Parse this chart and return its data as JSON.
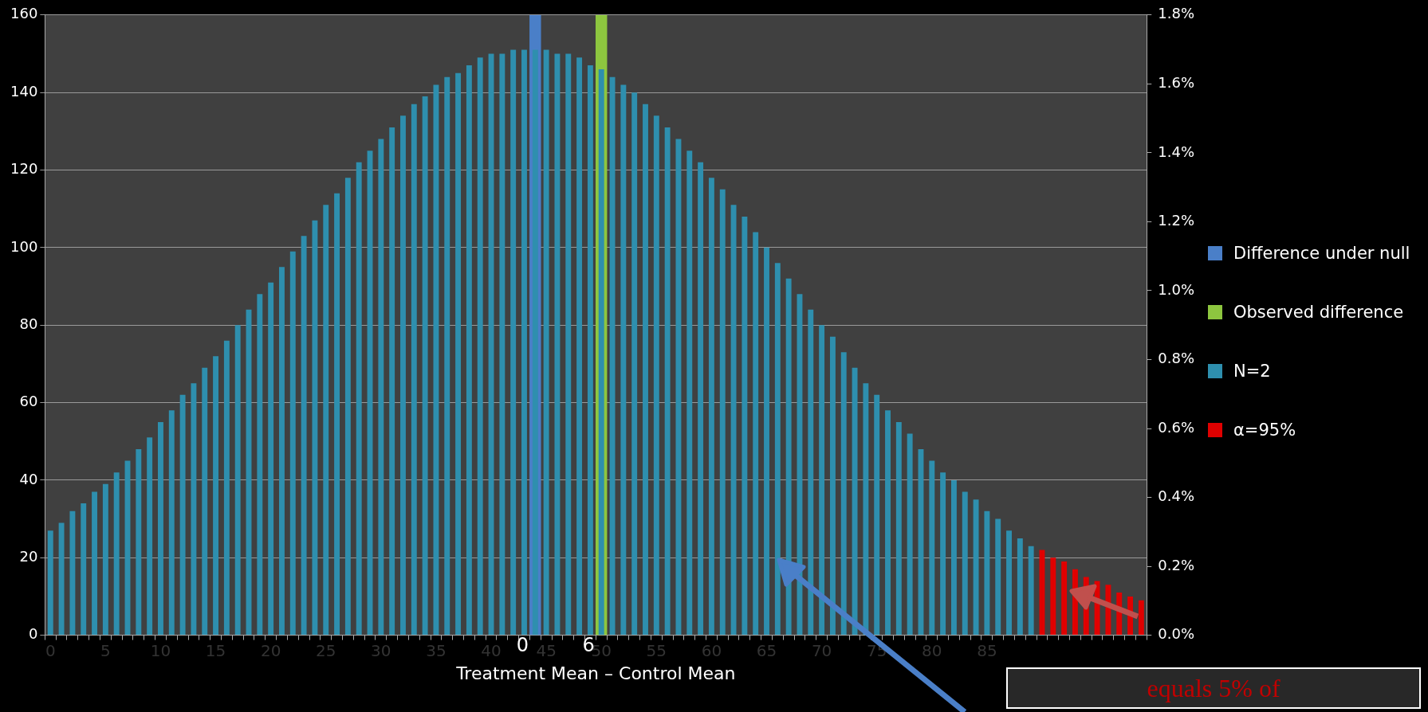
{
  "chart_data": {
    "type": "bar",
    "xlabel": "Treatment Mean – Control Mean",
    "categories": [
      "0",
      null,
      null,
      null,
      null,
      "5",
      null,
      null,
      null,
      null,
      "10",
      null,
      null,
      null,
      null,
      "15",
      null,
      null,
      null,
      null,
      "20",
      null,
      null,
      null,
      null,
      "25",
      null,
      null,
      null,
      null,
      "30",
      null,
      null,
      null,
      null,
      "35",
      null,
      null,
      null,
      null,
      "40",
      null,
      null,
      null,
      null,
      "45",
      null,
      null,
      null,
      null,
      "50",
      null,
      null,
      null,
      null,
      "55",
      null,
      null,
      null,
      null,
      "60",
      null,
      null,
      null,
      null,
      "65",
      null,
      null,
      null,
      null,
      "70",
      null,
      null,
      null,
      null,
      "75",
      null,
      null,
      null,
      null,
      "80",
      null,
      null,
      null,
      null,
      "85",
      null,
      null,
      null,
      null,
      null,
      null,
      null,
      null,
      null,
      null,
      null,
      null,
      null,
      null
    ],
    "series": [
      {
        "name": "Difference under null",
        "color": "#4a7fc8",
        "values": [
          null,
          null,
          null,
          null,
          null,
          null,
          null,
          null,
          null,
          null,
          null,
          null,
          null,
          null,
          null,
          null,
          null,
          null,
          null,
          null,
          null,
          null,
          null,
          null,
          null,
          null,
          null,
          null,
          null,
          null,
          null,
          null,
          null,
          null,
          null,
          null,
          null,
          null,
          null,
          null,
          null,
          null,
          null,
          null,
          160,
          null,
          null,
          null,
          null,
          null,
          null,
          null,
          null,
          null,
          null,
          null,
          null,
          null,
          null,
          null,
          null,
          null,
          null,
          null,
          null,
          null,
          null,
          null,
          null,
          null,
          null,
          null,
          null,
          null,
          null,
          null,
          null,
          null,
          null,
          null,
          null,
          null,
          null,
          null,
          null,
          null,
          null,
          null,
          null,
          null,
          null,
          null,
          null,
          null,
          null,
          null,
          null,
          null,
          null,
          null
        ]
      },
      {
        "name": "Observed difference",
        "color": "#8dc63f",
        "values": [
          null,
          null,
          null,
          null,
          null,
          null,
          null,
          null,
          null,
          null,
          null,
          null,
          null,
          null,
          null,
          null,
          null,
          null,
          null,
          null,
          null,
          null,
          null,
          null,
          null,
          null,
          null,
          null,
          null,
          null,
          null,
          null,
          null,
          null,
          null,
          null,
          null,
          null,
          null,
          null,
          null,
          null,
          null,
          null,
          null,
          null,
          null,
          null,
          null,
          null,
          160,
          null,
          null,
          null,
          null,
          null,
          null,
          null,
          null,
          null,
          null,
          null,
          null,
          null,
          null,
          null,
          null,
          null,
          null,
          null,
          null,
          null,
          null,
          null,
          null,
          null,
          null,
          null,
          null,
          null,
          null,
          null,
          null,
          null,
          null,
          null,
          null,
          null,
          null,
          null,
          null,
          null,
          null,
          null,
          null,
          null,
          null,
          null,
          null,
          null
        ]
      },
      {
        "name": "N=2",
        "color": "#2e8fae",
        "values": [
          27,
          29,
          32,
          34,
          37,
          39,
          42,
          45,
          48,
          51,
          55,
          58,
          62,
          65,
          69,
          72,
          76,
          80,
          84,
          88,
          91,
          95,
          99,
          103,
          107,
          111,
          114,
          118,
          122,
          125,
          128,
          131,
          134,
          137,
          139,
          142,
          144,
          145,
          147,
          149,
          150,
          150,
          151,
          151,
          151,
          151,
          150,
          150,
          149,
          147,
          146,
          144,
          142,
          140,
          137,
          134,
          131,
          128,
          125,
          122,
          118,
          115,
          111,
          108,
          104,
          100,
          96,
          92,
          88,
          84,
          80,
          77,
          73,
          69,
          65,
          62,
          58,
          55,
          52,
          48,
          45,
          42,
          40,
          37,
          35,
          32,
          30,
          27,
          25,
          23,
          null,
          null,
          null,
          null,
          null,
          null,
          null,
          null,
          null,
          null
        ]
      },
      {
        "name": "α=95%",
        "color": "#e00000",
        "values": [
          null,
          null,
          null,
          null,
          null,
          null,
          null,
          null,
          null,
          null,
          null,
          null,
          null,
          null,
          null,
          null,
          null,
          null,
          null,
          null,
          null,
          null,
          null,
          null,
          null,
          null,
          null,
          null,
          null,
          null,
          null,
          null,
          null,
          null,
          null,
          null,
          null,
          null,
          null,
          null,
          null,
          null,
          null,
          null,
          null,
          null,
          null,
          null,
          null,
          null,
          null,
          null,
          null,
          null,
          null,
          null,
          null,
          null,
          null,
          null,
          null,
          null,
          null,
          null,
          null,
          null,
          null,
          null,
          null,
          null,
          null,
          null,
          null,
          null,
          null,
          null,
          null,
          null,
          null,
          null,
          null,
          null,
          null,
          null,
          null,
          null,
          null,
          null,
          null,
          null,
          22,
          20,
          19,
          17,
          15,
          14,
          13,
          11,
          10,
          9
        ]
      }
    ],
    "ylim": [
      0,
      160
    ],
    "yticks": [
      0,
      20,
      40,
      60,
      80,
      100,
      120,
      140,
      160
    ],
    "y2lim": [
      0,
      1.8
    ],
    "y2ticks": [
      {
        "value": 0,
        "label": "0.0%"
      },
      {
        "value": 0.2,
        "label": "0.2%"
      },
      {
        "value": 0.4,
        "label": "0.4%"
      },
      {
        "value": 0.6,
        "label": "0.6%"
      },
      {
        "value": 0.8,
        "label": "0.8%"
      },
      {
        "value": 1.0,
        "label": "1.0%"
      },
      {
        "value": 1.2,
        "label": "1.2%"
      },
      {
        "value": 1.4,
        "label": "1.4%"
      },
      {
        "value": 1.6,
        "label": "1.6%"
      },
      {
        "value": 1.8,
        "label": "1.8%"
      }
    ],
    "grid": "y",
    "legend": "right",
    "annotations": [
      "0",
      "6",
      "equals 5% of"
    ]
  }
}
